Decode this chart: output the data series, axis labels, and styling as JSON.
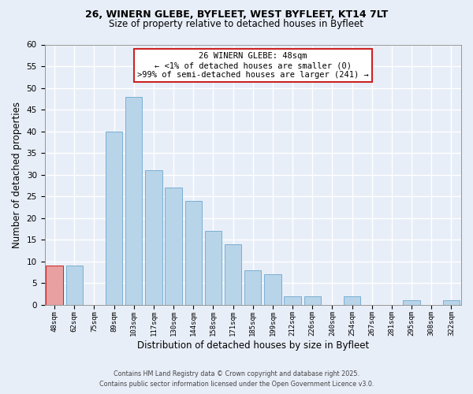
{
  "title_line1": "26, WINERN GLEBE, BYFLEET, WEST BYFLEET, KT14 7LT",
  "title_line2": "Size of property relative to detached houses in Byfleet",
  "bar_labels": [
    "48sqm",
    "62sqm",
    "75sqm",
    "89sqm",
    "103sqm",
    "117sqm",
    "130sqm",
    "144sqm",
    "158sqm",
    "171sqm",
    "185sqm",
    "199sqm",
    "212sqm",
    "226sqm",
    "240sqm",
    "254sqm",
    "267sqm",
    "281sqm",
    "295sqm",
    "308sqm",
    "322sqm"
  ],
  "bar_values": [
    9,
    9,
    0,
    40,
    48,
    31,
    27,
    24,
    17,
    14,
    8,
    7,
    2,
    2,
    0,
    2,
    0,
    0,
    1,
    0,
    1
  ],
  "bar_color": "#b8d4e8",
  "bar_edge_color": "#7aafd4",
  "highlight_bar_index": 0,
  "highlight_bar_color": "#e8a0a0",
  "highlight_bar_edge_color": "#cc2222",
  "xlabel": "Distribution of detached houses by size in Byfleet",
  "ylabel": "Number of detached properties",
  "ylim": [
    0,
    60
  ],
  "yticks": [
    0,
    5,
    10,
    15,
    20,
    25,
    30,
    35,
    40,
    45,
    50,
    55,
    60
  ],
  "annotation_title": "26 WINERN GLEBE: 48sqm",
  "annotation_line2": "← <1% of detached houses are smaller (0)",
  "annotation_line3": ">99% of semi-detached houses are larger (241) →",
  "annotation_box_color": "#ffffff",
  "annotation_box_edge_color": "#cc2222",
  "footer_line1": "Contains HM Land Registry data © Crown copyright and database right 2025.",
  "footer_line2": "Contains public sector information licensed under the Open Government Licence v3.0.",
  "background_color": "#e8eef8",
  "plot_bg_color": "#e8eef8",
  "grid_color": "#ffffff"
}
